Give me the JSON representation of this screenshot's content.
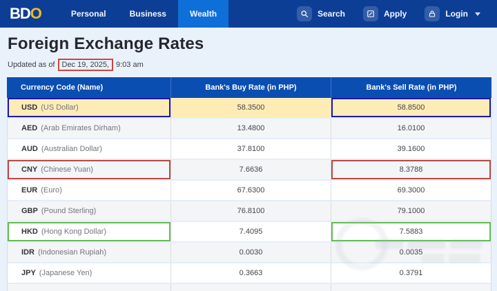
{
  "brand": {
    "logo_bd": "BD",
    "logo_o": "O"
  },
  "nav": {
    "items": [
      {
        "label": "Personal",
        "active": false
      },
      {
        "label": "Business",
        "active": false
      },
      {
        "label": "Wealth",
        "active": true
      }
    ],
    "actions": [
      {
        "label": "Search",
        "icon": "search-icon"
      },
      {
        "label": "Apply",
        "icon": "edit-compose-icon"
      },
      {
        "label": "Login",
        "icon": "lock-icon",
        "has_caret": true
      }
    ]
  },
  "page": {
    "title": "Foreign Exchange Rates",
    "updated_prefix": "Updated as of",
    "updated_date": "Dec 19, 2025,",
    "updated_time": "9:03 am"
  },
  "table": {
    "columns": [
      "Currency Code (Name)",
      "Bank's Buy Rate (in PHP)",
      "Bank's Sell Rate (in PHP)"
    ],
    "rows": [
      {
        "code": "USD",
        "name": "(US Dollar)",
        "buy": "58.3500",
        "sell": "58.8500",
        "highlight": true,
        "annotation": "navy"
      },
      {
        "code": "AED",
        "name": "(Arab Emirates Dirham)",
        "buy": "13.4800",
        "sell": "16.0100"
      },
      {
        "code": "AUD",
        "name": "(Australian Dollar)",
        "buy": "37.8100",
        "sell": "39.1600"
      },
      {
        "code": "CNY",
        "name": "(Chinese Yuan)",
        "buy": "7.6636",
        "sell": "8.3788",
        "annotation": "red"
      },
      {
        "code": "EUR",
        "name": "(Euro)",
        "buy": "67.6300",
        "sell": "69.3000"
      },
      {
        "code": "GBP",
        "name": "(Pound Sterling)",
        "buy": "76.8100",
        "sell": "79.1000"
      },
      {
        "code": "HKD",
        "name": "(Hong Kong Dollar)",
        "buy": "7.4095",
        "sell": "7.5883",
        "annotation": "green"
      },
      {
        "code": "IDR",
        "name": "(Indonesian Rupiah)",
        "buy": "0.0030",
        "sell": "0.0035"
      },
      {
        "code": "JPY",
        "name": "(Japanese Yen)",
        "buy": "0.3663",
        "sell": "0.3791"
      }
    ]
  },
  "colors": {
    "navbar_bg": "#0d3e96",
    "active_tab_bg": "#0e6fd8",
    "logo_gold": "#f5b91e",
    "table_header_bg": "#0b4eb2",
    "usd_highlight_bg": "#fdecb5",
    "annotation_navy": "#1c18a8",
    "annotation_red": "#b74a44",
    "annotation_green": "#66bb55",
    "date_box_red": "#cf4540",
    "page_bg": "#e9f2fb"
  }
}
